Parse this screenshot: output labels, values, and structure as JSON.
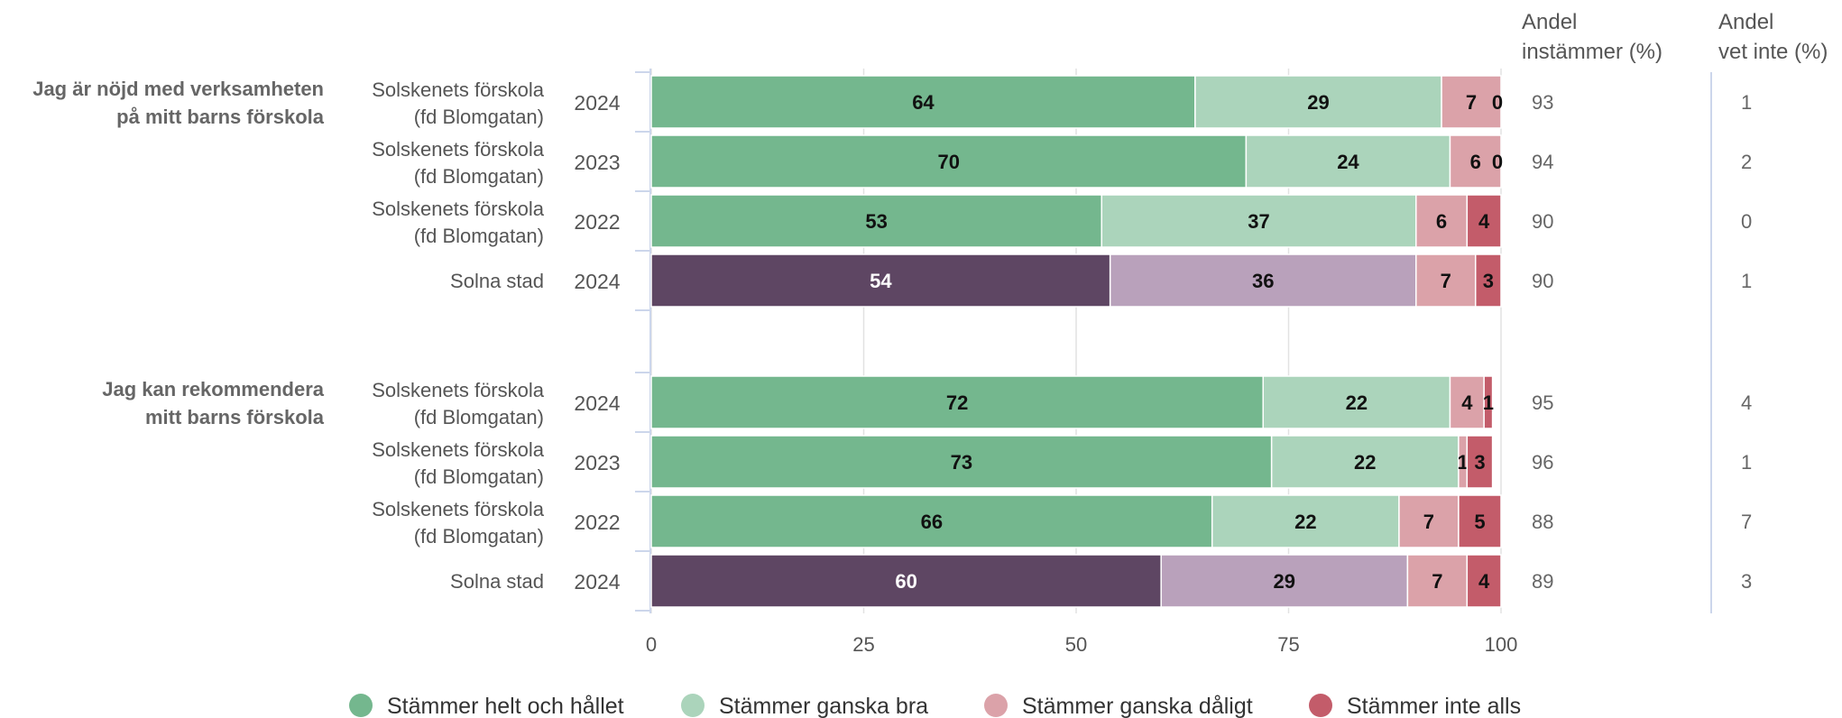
{
  "colors": {
    "helt": "#74b78e",
    "ganska_bra": "#abd4bb",
    "ganska_daligt": "#dba2a9",
    "inte_alls": "#c35c6a",
    "stad_helt": "#5e4663",
    "stad_ganska_bra": "#b9a1bb",
    "grid": "#e2e2e2",
    "axis": "#ccd6eb",
    "label_text": "#555555",
    "group_text": "#666666",
    "value_text": "#666666"
  },
  "chart_data": {
    "type": "bar",
    "orientation": "horizontal",
    "stacked": true,
    "xlim": [
      0,
      100
    ],
    "xticks": [
      "0",
      "25",
      "50",
      "75",
      "100"
    ],
    "column_headers": {
      "instammer": [
        "Andel",
        "instämmer (%)"
      ],
      "vet_inte": [
        "Andel",
        "vet inte (%)"
      ]
    },
    "legend": {
      "placement": "bottom",
      "items": [
        {
          "label": "Stämmer helt och hållet",
          "color": "#74b78e"
        },
        {
          "label": "Stämmer ganska bra",
          "color": "#abd4bb"
        },
        {
          "label": "Stämmer ganska dåligt",
          "color": "#dba2a9"
        },
        {
          "label": "Stämmer inte alls",
          "color": "#c35c6a"
        }
      ]
    },
    "groups": [
      {
        "title": [
          "Jag är nöjd med verksamheten",
          "på mitt barns förskola"
        ],
        "rows": [
          {
            "unit": [
              "Solskenets förskola",
              "(fd Blomgatan)"
            ],
            "year": "2024",
            "values": [
              64,
              29,
              7,
              0
            ],
            "labels": [
              "64",
              "29",
              "7",
              "0"
            ],
            "instammer": "93",
            "vet_inte": "1",
            "stad": false
          },
          {
            "unit": [
              "Solskenets förskola",
              "(fd Blomgatan)"
            ],
            "year": "2023",
            "values": [
              70,
              24,
              6,
              0
            ],
            "labels": [
              "70",
              "24",
              "6",
              "0"
            ],
            "instammer": "94",
            "vet_inte": "2",
            "stad": false
          },
          {
            "unit": [
              "Solskenets förskola",
              "(fd Blomgatan)"
            ],
            "year": "2022",
            "values": [
              53,
              37,
              6,
              4
            ],
            "labels": [
              "53",
              "37",
              "6",
              "4"
            ],
            "instammer": "90",
            "vet_inte": "0",
            "stad": false
          },
          {
            "unit": [
              "Solna stad"
            ],
            "year": "2024",
            "values": [
              54,
              36,
              7,
              3
            ],
            "labels": [
              "54",
              "36",
              "7",
              "3"
            ],
            "instammer": "90",
            "vet_inte": "1",
            "stad": true
          }
        ]
      },
      {
        "title": [
          "Jag kan rekommendera",
          "mitt barns förskola"
        ],
        "rows": [
          {
            "unit": [
              "Solskenets förskola",
              "(fd Blomgatan)"
            ],
            "year": "2024",
            "values": [
              72,
              22,
              4,
              1
            ],
            "labels": [
              "72",
              "22",
              "4",
              "1"
            ],
            "instammer": "95",
            "vet_inte": "4",
            "stad": false
          },
          {
            "unit": [
              "Solskenets förskola",
              "(fd Blomgatan)"
            ],
            "year": "2023",
            "values": [
              73,
              22,
              1,
              3
            ],
            "labels": [
              "73",
              "22",
              "1",
              "3"
            ],
            "instammer": "96",
            "vet_inte": "1",
            "stad": false
          },
          {
            "unit": [
              "Solskenets förskola",
              "(fd Blomgatan)"
            ],
            "year": "2022",
            "values": [
              66,
              22,
              7,
              5
            ],
            "labels": [
              "66",
              "22",
              "7",
              "5"
            ],
            "instammer": "88",
            "vet_inte": "7",
            "stad": false
          },
          {
            "unit": [
              "Solna stad"
            ],
            "year": "2024",
            "values": [
              60,
              29,
              7,
              4
            ],
            "labels": [
              "60",
              "29",
              "7",
              "4"
            ],
            "instammer": "89",
            "vet_inte": "3",
            "stad": true
          }
        ]
      }
    ]
  }
}
